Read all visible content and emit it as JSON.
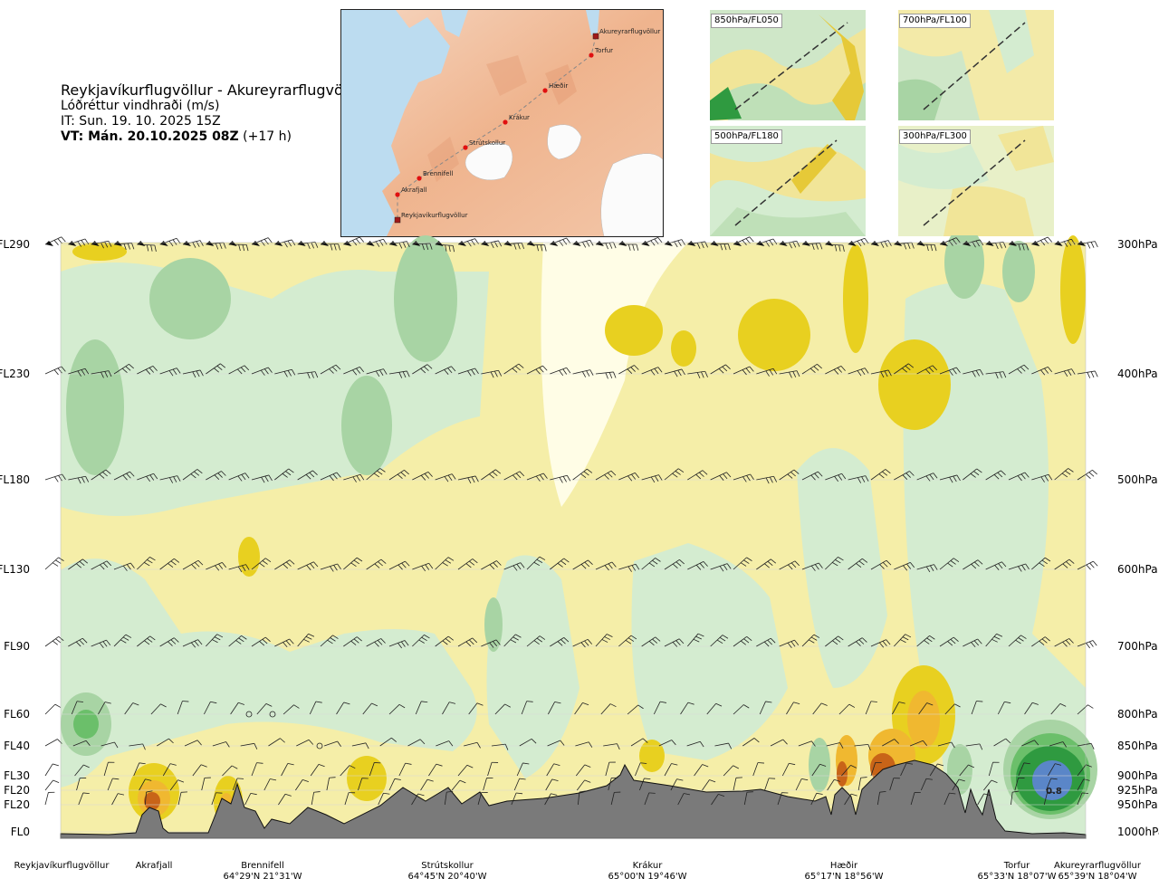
{
  "header": {
    "route": "Reykjavíkurflugvöllur - Akureyrarflugvöllur",
    "variable": "Lóðréttur vindhraði (m/s)",
    "issue_time": "IT: Sun. 19. 10. 2025 15Z",
    "valid_time": "VT: Mán. 20.10.2025 08Z",
    "lead_time": "(+17 h)"
  },
  "route_map": {
    "waypoints": [
      "Akureyrarflugvöllur",
      "Torfur",
      "Hæðir",
      "Krákur",
      "Strútskollur",
      "Brennifell",
      "Akrafjall",
      "Reykjavíkurflugvöllur"
    ]
  },
  "insets": [
    {
      "label": "850hPa/FL050"
    },
    {
      "label": "700hPa/FL100"
    },
    {
      "label": "500hPa/FL180"
    },
    {
      "label": "300hPa/FL300"
    }
  ],
  "chart_data": {
    "type": "heatmap",
    "title": "Lóðréttur vindhraði (m/s)",
    "y_left_levels": [
      "FL290",
      "FL230",
      "FL180",
      "FL130",
      "FL90",
      "FL60",
      "FL40",
      "FL30",
      "FL20",
      "FL20",
      "FL0"
    ],
    "y_right_levels": [
      "300hPa",
      "400hPa",
      "500hPa",
      "600hPa",
      "700hPa",
      "800hPa",
      "850hPa",
      "900hPa",
      "925hPa",
      "950hPa",
      "1000hPa"
    ],
    "x_waypoints": [
      {
        "name": "Reykjavíkurflugvöllur",
        "coord": ""
      },
      {
        "name": "Akrafjall",
        "coord": ""
      },
      {
        "name": "Brennifell",
        "coord": "64°29'N 21°31'W"
      },
      {
        "name": "Strútskollur",
        "coord": "64°45'N 20°40'W"
      },
      {
        "name": "Krákur",
        "coord": "65°00'N 19°46'W"
      },
      {
        "name": "Hæðir",
        "coord": "65°17'N 18°56'W"
      },
      {
        "name": "Torfur",
        "coord": "65°33'N 18°07'W"
      },
      {
        "name": "Akureyrarflugvöllur",
        "coord": "65°39'N 18°04'W"
      }
    ],
    "annotations": [
      "0.8"
    ],
    "colors": {
      "up_strong": "#e8d020",
      "up_weak": "#f5eea8",
      "near_zero": "#fffde6",
      "down_weak": "#d4ecd0",
      "down_mod": "#a8d4a4",
      "down_strong": "#2f9a40",
      "down_max": "#5a86c8",
      "up_max": "#c86418",
      "terrain": "#7a7a7a"
    }
  }
}
